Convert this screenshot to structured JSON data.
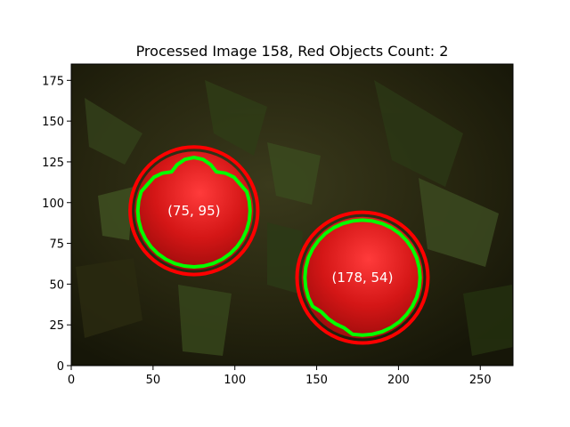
{
  "chart_data": {
    "type": "image",
    "title": "Processed Image 158, Red Objects Count: 2",
    "xlim": [
      0,
      270
    ],
    "ylim": [
      0,
      185
    ],
    "xticks": [
      0,
      50,
      100,
      150,
      200,
      250
    ],
    "yticks": [
      0,
      25,
      50,
      75,
      100,
      125,
      150,
      175
    ],
    "objects": [
      {
        "label": "(75, 95)",
        "cx": 75,
        "cy": 95,
        "r": 39
      },
      {
        "label": "(178, 54)",
        "cx": 178,
        "cy": 54,
        "r": 40
      }
    ],
    "colors": {
      "circle": "#ff0000",
      "contour": "#00ff00",
      "fruit": "#c81414",
      "background": "#2a2a12"
    }
  }
}
